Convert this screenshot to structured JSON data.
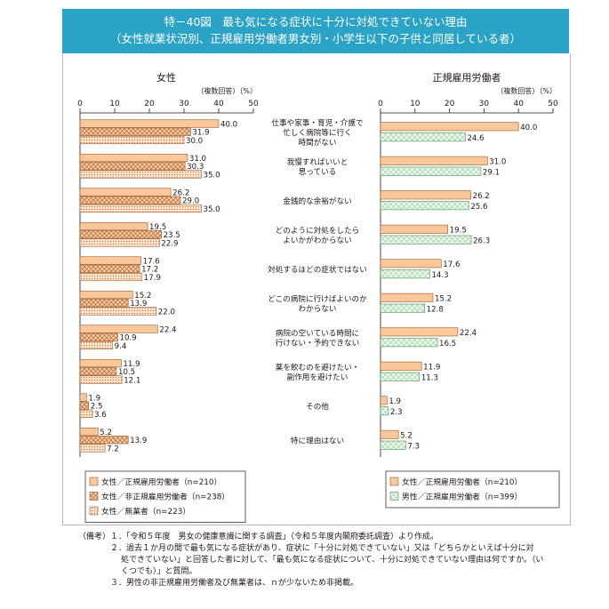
{
  "title": {
    "line1": "特－40図　最も気になる症状に十分に対処できていない理由",
    "line2": "（女性就業状況別、正規雇用労働者男女別・小学生以下の子供と同居している者）"
  },
  "colors": {
    "banner": "#2ba3c6",
    "orange": "#f9c79a",
    "orange_stroke": "#9c5a2e",
    "green": "#bfe2c3",
    "green_stroke": "#4d8f58"
  },
  "chart_data": [
    {
      "type": "bar",
      "orientation": "horizontal",
      "title": "女性",
      "unit_label": "（複数回答）（%）",
      "xlim": [
        0,
        50
      ],
      "xticks": [
        0,
        10,
        20,
        30,
        40,
        50
      ],
      "categories": [
        "仕事や家事・育児・介護で忙しく病院等に行く時間がない",
        "我慢すればいいと思っている",
        "金銭的な余裕がない",
        "どのように対処をしたらよいかがわからない",
        "対処するほどの症状ではない",
        "どこの病院に行けばよいのかわからない",
        "病院の空いている時間に行けない・予約できない",
        "薬を飲むのを避けたい・副作用を避けたい",
        "その他",
        "特に理由はない"
      ],
      "series": [
        {
          "name": "女性／正規雇用労働者（n=210）",
          "pattern": "solid-orange",
          "values": [
            40.0,
            31.0,
            26.2,
            19.5,
            17.6,
            15.2,
            22.4,
            11.9,
            1.9,
            5.2
          ]
        },
        {
          "name": "女性／非正規雇用労働者（n=238）",
          "pattern": "cross-orange",
          "values": [
            31.9,
            30.3,
            29.0,
            23.5,
            17.2,
            13.9,
            10.9,
            10.5,
            2.5,
            13.9
          ]
        },
        {
          "name": "女性／無業者（n=223）",
          "pattern": "dots-orange",
          "values": [
            30.0,
            35.0,
            35.0,
            22.9,
            17.9,
            22.0,
            9.4,
            12.1,
            3.6,
            7.2
          ]
        }
      ],
      "value_labels": [
        [
          "40.0",
          "31.0",
          "26.2",
          "19.5",
          "17.6",
          "15.2",
          "22.4",
          "11.9",
          "1.9",
          "5.2"
        ],
        [
          "31.9",
          "30.3",
          "29.0",
          "23.5",
          "17.2",
          "13.9",
          "10.9",
          "10.5",
          "2.5",
          "13.9"
        ],
        [
          "30.0",
          "35.0",
          "35.0",
          "22.9",
          "17.9",
          "22.0",
          "9.4",
          "12.1",
          "3.6",
          "7.2"
        ]
      ]
    },
    {
      "type": "bar",
      "orientation": "horizontal",
      "title": "正規雇用労働者",
      "unit_label": "（複数回答）（%）",
      "xlim": [
        0,
        50
      ],
      "xticks": [
        0,
        10,
        20,
        30,
        40,
        50
      ],
      "categories": [
        "仕事や家事・育児・介護で忙しく病院等に行く時間がない",
        "我慢すればいいと思っている",
        "金銭的な余裕がない",
        "どのように対処をしたらよいかがわからない",
        "対処するほどの症状ではない",
        "どこの病院に行けばよいのかわからない",
        "病院の空いている時間に行けない・予約できない",
        "薬を飲むのを避けたい・副作用を避けたい",
        "その他",
        "特に理由はない"
      ],
      "series": [
        {
          "name": "女性／正規雇用労働者（n=210）",
          "pattern": "solid-orange",
          "values": [
            40.0,
            31.0,
            26.2,
            19.5,
            17.6,
            15.2,
            22.4,
            11.9,
            1.9,
            5.2
          ]
        },
        {
          "name": "男性／正規雇用労働者（n=399）",
          "pattern": "check-green",
          "values": [
            24.6,
            29.1,
            25.6,
            26.3,
            14.3,
            12.8,
            16.5,
            11.3,
            2.3,
            7.3
          ]
        }
      ],
      "value_labels": [
        [
          "40.0",
          "31.0",
          "26.2",
          "19.5",
          "17.6",
          "15.2",
          "22.4",
          "11.9",
          "1.9",
          "5.2"
        ],
        [
          "24.6",
          "29.1",
          "25.6",
          "26.3",
          "14.3",
          "12.8",
          "16.5",
          "11.3",
          "2.3",
          "7.3"
        ]
      ]
    }
  ],
  "category_lines": [
    [
      "仕事や家事・育児・介護で",
      "忙しく病院等に行く",
      "時間がない"
    ],
    [
      "我慢すればいいと",
      "思っている"
    ],
    [
      "金銭的な余裕がない"
    ],
    [
      "どのように対処をしたら",
      "よいかがわからない"
    ],
    [
      "対処するほどの症状ではない"
    ],
    [
      "どこの病院に行けばよいのか",
      "わからない"
    ],
    [
      "病院の空いている時間に",
      "行けない・予約できない"
    ],
    [
      "薬を飲むのを避けたい・",
      "副作用を避けたい"
    ],
    [
      "その他"
    ],
    [
      "特に理由はない"
    ]
  ],
  "notes": {
    "line1": "（備考）１．「令和５年度　男女の健康意識に関する調査」（令和５年度内閣府委託調査）より作成。",
    "line2": "２．過去１か月の間で最も気になる症状があり、症状に「十分に対処できていない」又は「どちらかといえば十分に対",
    "line3": "処できていない」と回答した者に対して、「最も気になる症状について、十分に対処できていない理由は何ですか。（い",
    "line4": "くつでも）」と質問。",
    "line5": "３．男性の非正規雇用労働者及び無業者は、ｎが少ないため非掲載。"
  }
}
